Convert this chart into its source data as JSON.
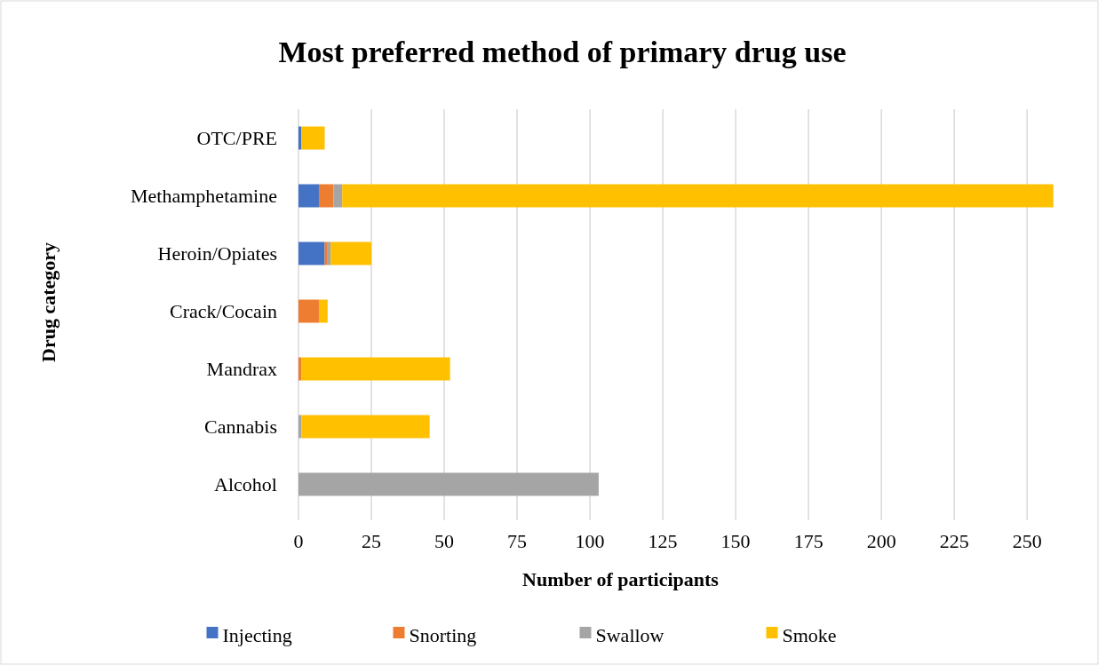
{
  "chart_data": {
    "type": "bar",
    "orientation": "horizontal",
    "stacked": true,
    "title": "Most preferred method of primary drug use",
    "xlabel": "Number of participants",
    "ylabel": "Drug category",
    "categories": [
      "OTC/PRE",
      "Methamphetamine",
      "Heroin/Opiates",
      "Crack/Cocain",
      "Mandrax",
      "Cannabis",
      "Alcohol"
    ],
    "series": [
      {
        "name": "Injecting",
        "color": "#4472c4",
        "values": [
          1,
          7,
          9,
          0,
          0,
          0,
          0
        ]
      },
      {
        "name": "Snorting",
        "color": "#ed7d31",
        "values": [
          0,
          5,
          1,
          7,
          1,
          0,
          0
        ]
      },
      {
        "name": "Swallow",
        "color": "#a5a5a5",
        "values": [
          0,
          3,
          1,
          0,
          0,
          1,
          103
        ]
      },
      {
        "name": "Smoke",
        "color": "#ffc000",
        "values": [
          8,
          244,
          14,
          3,
          51,
          44,
          0
        ]
      }
    ],
    "xlim": [
      0,
      260
    ],
    "xticks": [
      0,
      25,
      50,
      75,
      100,
      125,
      150,
      175,
      200,
      225,
      250
    ],
    "grid": "x",
    "legend": "bottom"
  }
}
